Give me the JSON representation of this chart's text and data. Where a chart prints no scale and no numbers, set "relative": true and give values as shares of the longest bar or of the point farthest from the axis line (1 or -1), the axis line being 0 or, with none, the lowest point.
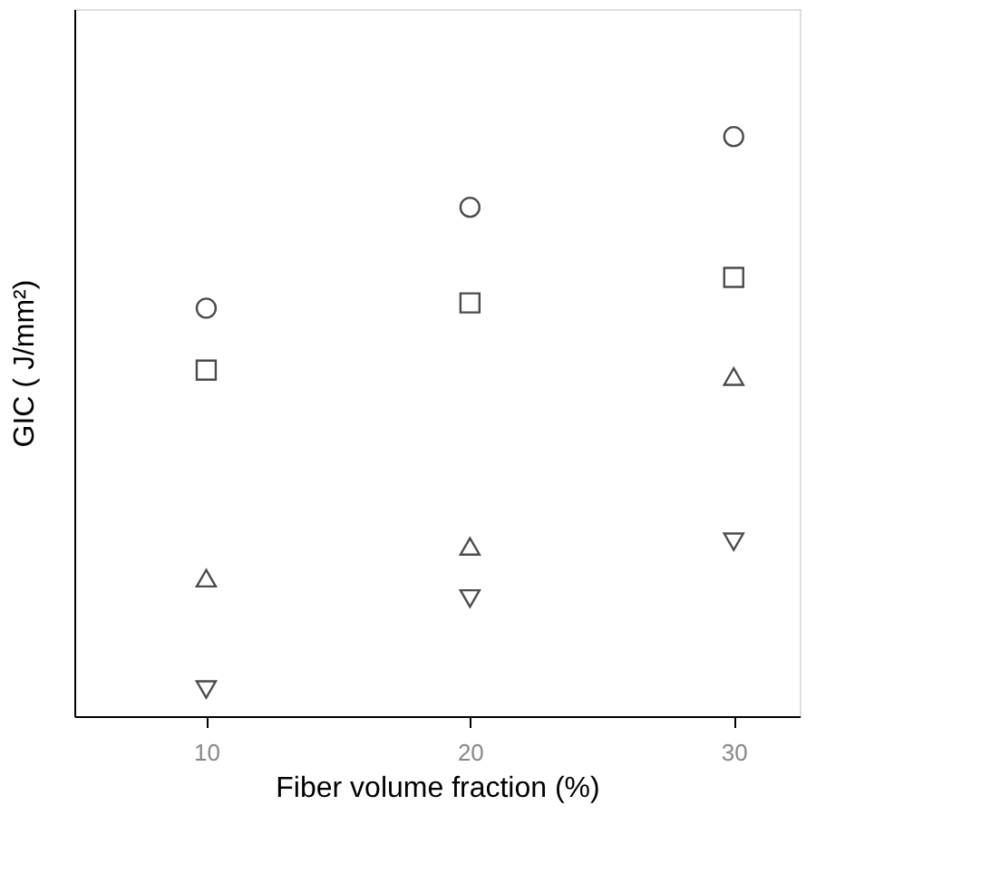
{
  "chart_data": {
    "type": "scatter",
    "xlabel": "Fiber volume fraction   (%)",
    "ylabel": "GIC   ( J/mm²)",
    "x": [
      10,
      20,
      30
    ],
    "xlim": [
      5,
      32.5
    ],
    "xticks": [
      10,
      20,
      30
    ],
    "relative": true,
    "grid": false,
    "series": [
      {
        "color": "#000000",
        "marker": "square",
        "values": [
          0.597,
          0.713,
          0.757
        ]
      },
      {
        "color": "#000000",
        "marker": "circle",
        "values": [
          0.704,
          0.878,
          1
        ]
      },
      {
        "color": "#000000",
        "marker": "triangle",
        "values": [
          0.238,
          0.293,
          0.586
        ]
      },
      {
        "color": "#000000",
        "marker": "triangle-down",
        "values": [
          0.046,
          0.203,
          0.301
        ]
      }
    ]
  }
}
